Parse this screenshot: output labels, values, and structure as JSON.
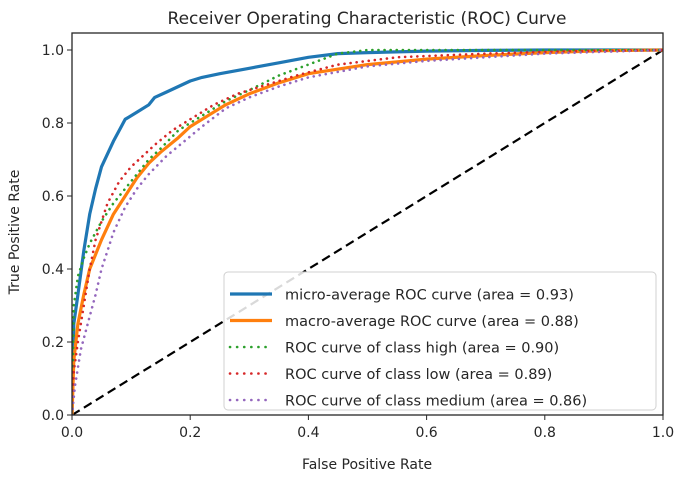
{
  "chart_data": {
    "type": "line",
    "title": "Receiver Operating Characteristic (ROC) Curve",
    "xlabel": "False Positive Rate",
    "ylabel": "True Positive Rate",
    "xlim": [
      0.0,
      1.0
    ],
    "ylim": [
      0.0,
      1.05
    ],
    "xticks": [
      "0.0",
      "0.2",
      "0.4",
      "0.6",
      "0.8",
      "1.0"
    ],
    "yticks": [
      "0.0",
      "0.2",
      "0.4",
      "0.6",
      "0.8",
      "1.0"
    ],
    "xtick_values": [
      0.0,
      0.2,
      0.4,
      0.6,
      0.8,
      1.0
    ],
    "ytick_values": [
      0.0,
      0.2,
      0.4,
      0.6,
      0.8,
      1.0
    ],
    "grid": false,
    "legend_position": "lower-right",
    "series": [
      {
        "name": "micro-average ROC curve (area = 0.93)",
        "color": "#1f77b4",
        "style": "solid",
        "x": [
          0,
          0.003,
          0.01,
          0.02,
          0.03,
          0.04,
          0.05,
          0.07,
          0.09,
          0.11,
          0.13,
          0.14,
          0.16,
          0.18,
          0.2,
          0.22,
          0.25,
          0.3,
          0.35,
          0.4,
          0.45,
          0.5,
          0.6,
          0.7,
          0.8,
          1.0
        ],
        "y": [
          0,
          0.25,
          0.33,
          0.45,
          0.55,
          0.62,
          0.68,
          0.75,
          0.81,
          0.83,
          0.85,
          0.87,
          0.885,
          0.9,
          0.915,
          0.925,
          0.935,
          0.95,
          0.965,
          0.98,
          0.99,
          0.993,
          0.997,
          0.999,
          1.0,
          1.0
        ]
      },
      {
        "name": "macro-average ROC curve (area = 0.88)",
        "color": "#ff7f0e",
        "style": "solid",
        "x": [
          0,
          0.003,
          0.01,
          0.02,
          0.03,
          0.05,
          0.07,
          0.09,
          0.11,
          0.13,
          0.15,
          0.18,
          0.2,
          0.23,
          0.26,
          0.3,
          0.35,
          0.4,
          0.5,
          0.6,
          0.7,
          0.8,
          0.9,
          1.0
        ],
        "y": [
          0,
          0.15,
          0.25,
          0.33,
          0.4,
          0.48,
          0.55,
          0.6,
          0.65,
          0.69,
          0.72,
          0.76,
          0.79,
          0.82,
          0.85,
          0.88,
          0.91,
          0.935,
          0.96,
          0.975,
          0.985,
          0.993,
          0.998,
          1.0
        ]
      },
      {
        "name": "ROC curve of class high (area = 0.90)",
        "color": "#2ca02c",
        "style": "dotted",
        "x": [
          0,
          0.003,
          0.01,
          0.02,
          0.03,
          0.05,
          0.07,
          0.09,
          0.11,
          0.13,
          0.15,
          0.18,
          0.2,
          0.23,
          0.26,
          0.3,
          0.35,
          0.4,
          0.45,
          0.5,
          0.6,
          0.8,
          1.0
        ],
        "y": [
          0,
          0.3,
          0.38,
          0.43,
          0.47,
          0.53,
          0.58,
          0.62,
          0.66,
          0.7,
          0.73,
          0.78,
          0.8,
          0.83,
          0.86,
          0.89,
          0.93,
          0.96,
          0.99,
          1.0,
          1.0,
          1.0,
          1.0
        ]
      },
      {
        "name": "ROC curve of class low (area = 0.89)",
        "color": "#d62728",
        "style": "dotted",
        "x": [
          0,
          0.003,
          0.01,
          0.02,
          0.03,
          0.04,
          0.05,
          0.06,
          0.08,
          0.1,
          0.12,
          0.14,
          0.17,
          0.2,
          0.24,
          0.28,
          0.32,
          0.38,
          0.45,
          0.55,
          0.7,
          0.85,
          1.0
        ],
        "y": [
          0,
          0.12,
          0.2,
          0.3,
          0.4,
          0.48,
          0.53,
          0.58,
          0.64,
          0.68,
          0.71,
          0.74,
          0.78,
          0.81,
          0.85,
          0.88,
          0.9,
          0.93,
          0.96,
          0.98,
          0.99,
          0.997,
          1.0
        ]
      },
      {
        "name": "ROC curve of class medium (area = 0.86)",
        "color": "#9467bd",
        "style": "dotted",
        "x": [
          0,
          0.005,
          0.015,
          0.03,
          0.04,
          0.05,
          0.06,
          0.07,
          0.09,
          0.11,
          0.13,
          0.16,
          0.19,
          0.22,
          0.26,
          0.3,
          0.35,
          0.4,
          0.45,
          0.5,
          0.6,
          0.7,
          0.8,
          0.9,
          1.0
        ],
        "y": [
          0,
          0.08,
          0.18,
          0.27,
          0.33,
          0.4,
          0.45,
          0.5,
          0.57,
          0.62,
          0.66,
          0.71,
          0.75,
          0.79,
          0.84,
          0.87,
          0.9,
          0.925,
          0.94,
          0.955,
          0.97,
          0.98,
          0.99,
          0.995,
          1.0
        ]
      },
      {
        "name": "chance",
        "color": "#000000",
        "style": "dashed",
        "legend": false,
        "x": [
          0,
          1
        ],
        "y": [
          0,
          1
        ]
      }
    ]
  }
}
